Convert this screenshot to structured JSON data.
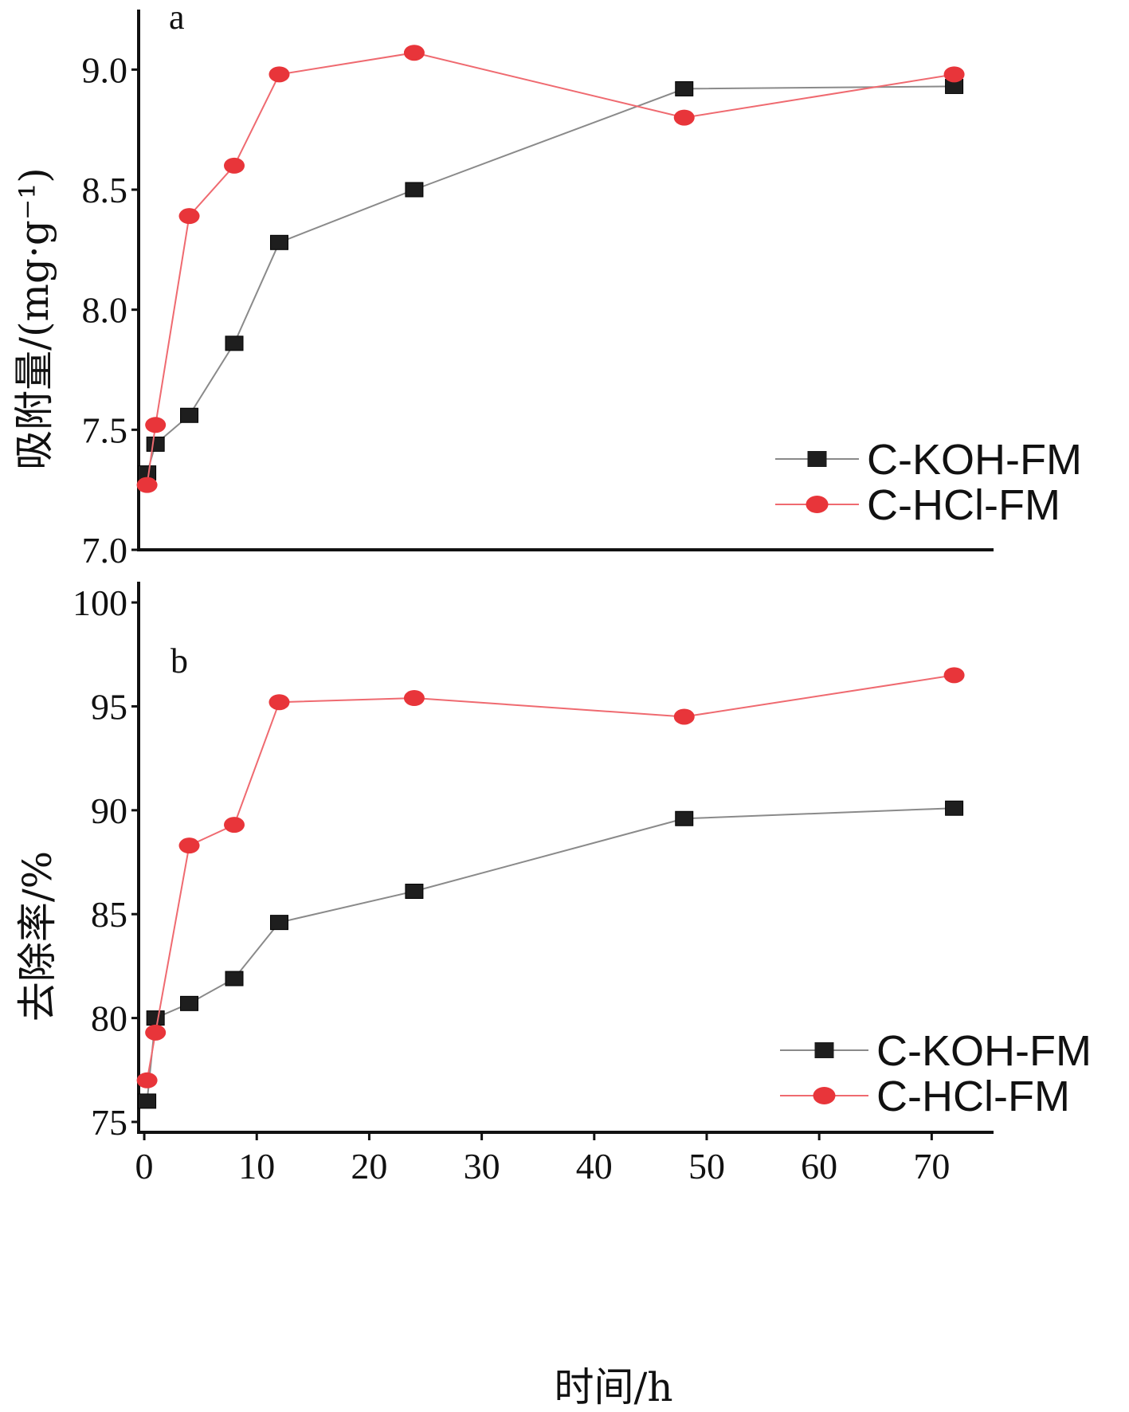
{
  "chart_data": [
    {
      "type": "line",
      "panel_label": "a",
      "ylabel": "吸附量/(mg·g⁻¹)",
      "ylim": [
        7.0,
        9.25
      ],
      "yticks": [
        "7.0",
        "7.5",
        "8.0",
        "8.5",
        "9.0"
      ],
      "legend_position": "lower-right",
      "series": [
        {
          "name": "C-KOH-FM",
          "color": "#1e1e1e",
          "marker": "square",
          "x": [
            0.25,
            1,
            4,
            8,
            12,
            24,
            48,
            72
          ],
          "y": [
            7.32,
            7.44,
            7.56,
            7.86,
            8.28,
            8.5,
            8.92,
            8.93
          ]
        },
        {
          "name": "C-HCl-FM",
          "color": "#e8353a",
          "marker": "circle",
          "x": [
            0.25,
            1,
            4,
            8,
            12,
            24,
            48,
            72
          ],
          "y": [
            7.27,
            7.52,
            8.39,
            8.6,
            8.98,
            9.07,
            8.8,
            8.98
          ]
        }
      ]
    },
    {
      "type": "line",
      "panel_label": "b",
      "ylabel": "去除率/%",
      "xlabel": "时间/h",
      "ylim": [
        74.5,
        101
      ],
      "yticks": [
        "75",
        "80",
        "85",
        "90",
        "95",
        "100"
      ],
      "xlim": [
        -0.5,
        75.5
      ],
      "xticks": [
        "0",
        "10",
        "20",
        "30",
        "40",
        "50",
        "60",
        "70"
      ],
      "legend_position": "lower-right",
      "series": [
        {
          "name": "C-KOH-FM",
          "color": "#1e1e1e",
          "marker": "square",
          "x": [
            0.25,
            1,
            4,
            8,
            12,
            24,
            48,
            72
          ],
          "y": [
            76.0,
            80.0,
            80.7,
            81.9,
            84.6,
            86.1,
            89.6,
            90.1
          ]
        },
        {
          "name": "C-HCl-FM",
          "color": "#e8353a",
          "marker": "circle",
          "x": [
            0.25,
            1,
            4,
            8,
            12,
            24,
            48,
            72
          ],
          "y": [
            77.0,
            79.3,
            88.3,
            89.3,
            95.2,
            95.4,
            94.5,
            96.5
          ]
        }
      ]
    }
  ]
}
